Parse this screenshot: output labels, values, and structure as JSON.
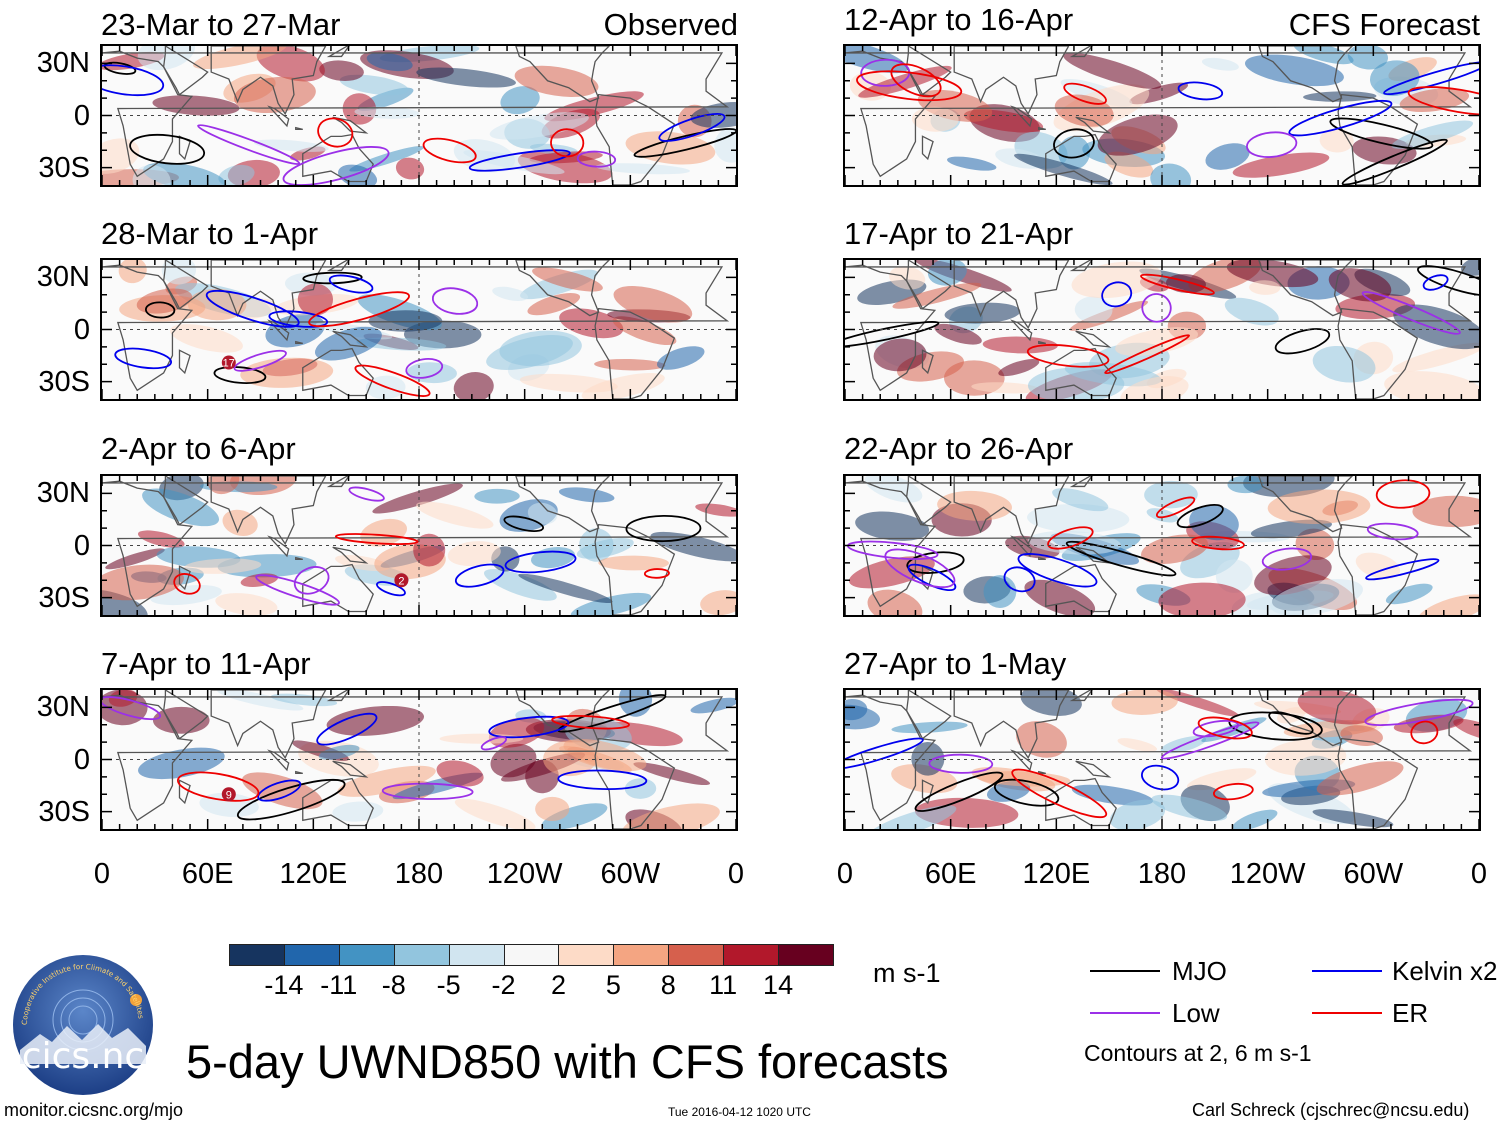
{
  "chart_data": {
    "type": "heatmap",
    "title": "5-day UWND850 with CFS forecasts",
    "variable": "850 hPa zonal wind anomaly",
    "units": "m s-1",
    "headers": {
      "observed": "Observed",
      "forecast": "CFS Forecast"
    },
    "x_ticks": [
      "0",
      "60E",
      "120E",
      "180",
      "120W",
      "60W",
      "0"
    ],
    "x_range": [
      0,
      360
    ],
    "y_ticks": [
      "30N",
      "0",
      "30S"
    ],
    "y_range": [
      -40,
      40
    ],
    "panels": [
      {
        "id": "p1",
        "label": "23-Mar to 27-Mar",
        "type": "observed"
      },
      {
        "id": "p2",
        "label": "28-Mar to 1-Apr",
        "type": "observed"
      },
      {
        "id": "p3",
        "label": "2-Apr to 6-Apr",
        "type": "observed"
      },
      {
        "id": "p4",
        "label": "7-Apr to 11-Apr",
        "type": "observed"
      },
      {
        "id": "p5",
        "label": "12-Apr to 16-Apr",
        "type": "forecast"
      },
      {
        "id": "p6",
        "label": "17-Apr to 21-Apr",
        "type": "forecast"
      },
      {
        "id": "p7",
        "label": "22-Apr to 26-Apr",
        "type": "forecast"
      },
      {
        "id": "p8",
        "label": "27-Apr to 1-May",
        "type": "forecast"
      }
    ],
    "colorbar": {
      "labels": [
        "-14",
        "-11",
        "-8",
        "-5",
        "-2",
        "2",
        "5",
        "8",
        "11",
        "14"
      ],
      "colors": [
        "#16345f",
        "#2166ac",
        "#4393c3",
        "#92c5de",
        "#d1e5f0",
        "#f7f7f7",
        "#fddbc7",
        "#f4a582",
        "#d6604d",
        "#b2182b",
        "#67001f"
      ],
      "units": "m s-1"
    },
    "legend": [
      {
        "label": "MJO",
        "color": "#000000"
      },
      {
        "label": "Kelvin x2",
        "color": "#0000ee"
      },
      {
        "label": "Low",
        "color": "#9b30e8"
      },
      {
        "label": "ER",
        "color": "#ee0000"
      }
    ],
    "contour_note": "Contours at 2, 6 m s-1",
    "storm_markers": [
      {
        "panel": "p2",
        "label": "17"
      },
      {
        "panel": "p3",
        "label": "2"
      },
      {
        "panel": "p4",
        "label": "9"
      }
    ]
  },
  "footer": {
    "url": "monitor.cicsnc.org/mjo",
    "timestamp": "Tue 2016-04-12 1020 UTC",
    "credit": "Carl Schreck (cjschrec@ncsu.edu)"
  },
  "logo": {
    "text": "cics.nc",
    "ring_text": "Cooperative Institute for Climate and Satellites"
  }
}
